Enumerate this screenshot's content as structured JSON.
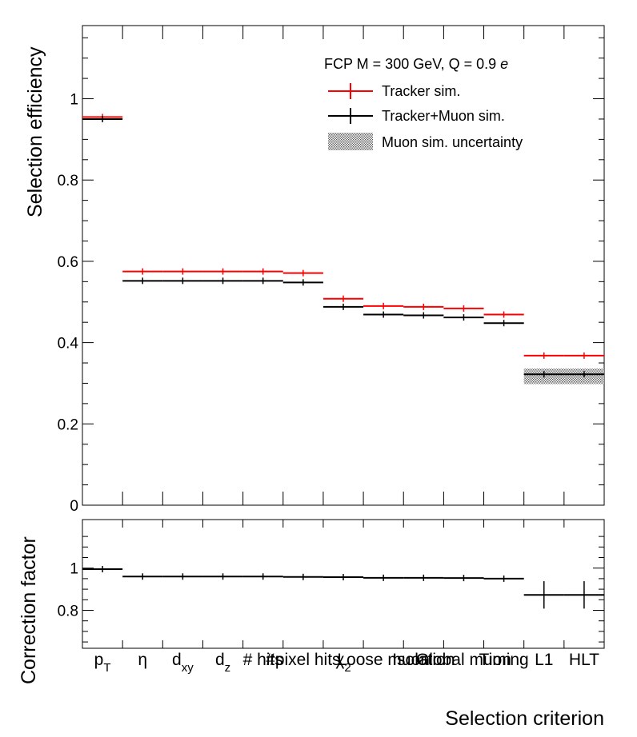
{
  "chart_data": [
    {
      "type": "line",
      "ylabel": "Selection efficiency",
      "ylim": [
        0,
        1.18
      ],
      "yticks": [
        "0",
        "0.2",
        "0.4",
        "0.6",
        "0.8",
        "1"
      ],
      "annotation": {
        "text": "FCP M = 300 GeV, Q = 0.9 ",
        "italic": "e"
      },
      "legend": {
        "placement": "top-right",
        "entries": [
          {
            "label": "Tracker sim.",
            "color": "#ff0000",
            "style": "line"
          },
          {
            "label": "Tracker+Muon sim.",
            "color": "#000000",
            "style": "line"
          },
          {
            "label": "Muon sim. uncertainty",
            "color": "#888888",
            "style": "hatched-band"
          }
        ]
      },
      "categories": [
        "pT",
        "η",
        "dxy",
        "dz",
        "# hits",
        "#pixel hits",
        "χ²",
        "Loose muon",
        "Isolation",
        "Global muon",
        "Timing",
        "L1",
        "HLT"
      ],
      "series": [
        {
          "name": "Tracker sim.",
          "color": "#ff0000",
          "values": [
            0.955,
            0.575,
            0.575,
            0.575,
            0.575,
            0.571,
            0.508,
            0.49,
            0.488,
            0.484,
            0.469,
            0.368,
            0.368
          ]
        },
        {
          "name": "Tracker+Muon sim.",
          "color": "#000000",
          "values": [
            0.95,
            0.552,
            0.552,
            0.552,
            0.552,
            0.548,
            0.488,
            0.469,
            0.467,
            0.462,
            0.448,
            0.322,
            0.322
          ]
        }
      ],
      "uncertainty_band": {
        "name": "Muon sim. uncertainty",
        "bins": [
          11,
          12
        ],
        "low": 0.298,
        "high": 0.336
      }
    },
    {
      "type": "line",
      "ylabel": "Correction factor",
      "ylim": [
        0.62,
        1.23
      ],
      "yticks": [
        "0.8",
        "1"
      ],
      "xlabel": "Selection criterion",
      "series": [
        {
          "name": "Correction factor",
          "color": "#000000",
          "values": [
            0.995,
            0.96,
            0.96,
            0.96,
            0.96,
            0.958,
            0.957,
            0.954,
            0.954,
            0.953,
            0.95,
            0.873,
            0.873
          ],
          "errors": [
            0.003,
            0.01,
            0.01,
            0.01,
            0.01,
            0.01,
            0.012,
            0.012,
            0.012,
            0.012,
            0.015,
            0.065,
            0.065
          ]
        }
      ]
    }
  ],
  "category_labels": [
    {
      "main": "p",
      "sub": "T"
    },
    {
      "main": "η",
      "sub": ""
    },
    {
      "main": "d",
      "sub": "xy"
    },
    {
      "main": "d",
      "sub": "z"
    },
    {
      "main": "# hits",
      "sub": ""
    },
    {
      "main": "#pixel hits",
      "sub": ""
    },
    {
      "main": "χ",
      "sub": "2"
    },
    {
      "main": "Loose muon",
      "sub": ""
    },
    {
      "main": "Isolation",
      "sub": ""
    },
    {
      "main": "Global muon",
      "sub": ""
    },
    {
      "main": "Timing",
      "sub": ""
    },
    {
      "main": "L1",
      "sub": ""
    },
    {
      "main": "HLT",
      "sub": ""
    }
  ]
}
